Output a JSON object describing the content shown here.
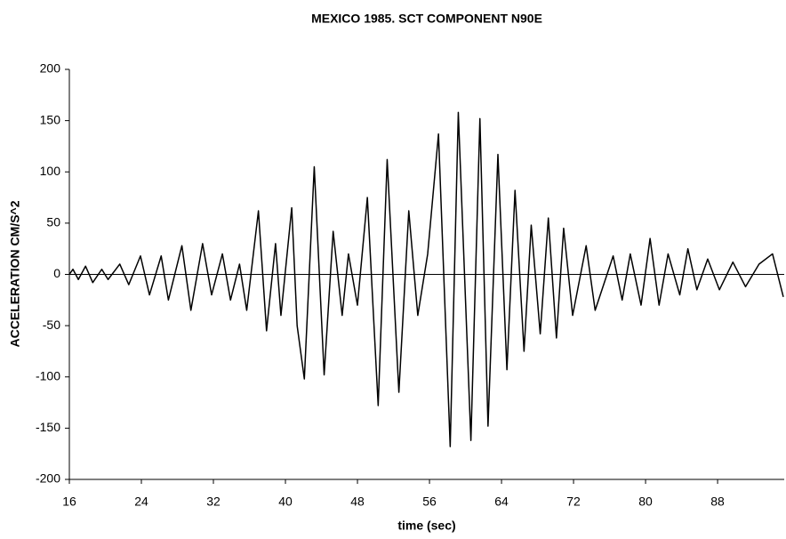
{
  "chart_data": {
    "type": "line",
    "title": "MEXICO 1985.  SCT COMPONENT N90E",
    "x_label": "time (sec)",
    "y_label": "ACCELERATION CM/S^2",
    "xlim": [
      16,
      95.4
    ],
    "xticks": [
      16,
      24,
      32,
      40,
      48,
      56,
      64,
      72,
      80,
      88
    ],
    "ylim": [
      -200,
      200
    ],
    "yticks": [
      200,
      150,
      100,
      50,
      0,
      -50,
      -100,
      -150,
      -200
    ],
    "series": [
      {
        "color": "#000000",
        "x": [
          16.0,
          16.4,
          17.0,
          17.8,
          18.6,
          19.6,
          20.3,
          21.6,
          22.6,
          23.9,
          24.9,
          26.2,
          27.0,
          28.5,
          29.5,
          30.8,
          31.8,
          33.0,
          33.9,
          34.9,
          35.7,
          37.0,
          37.9,
          38.9,
          39.5,
          40.7,
          41.3,
          42.1,
          43.2,
          44.3,
          45.3,
          46.3,
          47.0,
          48.0,
          49.1,
          50.3,
          51.3,
          52.6,
          53.7,
          54.7,
          55.8,
          57.0,
          58.3,
          59.2,
          60.6,
          61.6,
          62.5,
          63.6,
          64.6,
          65.5,
          66.5,
          67.3,
          68.3,
          69.2,
          70.1,
          70.9,
          71.9,
          73.4,
          74.4,
          76.4,
          77.4,
          78.3,
          79.5,
          80.5,
          81.5,
          82.5,
          83.8,
          84.7,
          85.7,
          86.9,
          88.2,
          89.7,
          91.1,
          92.6,
          94.1,
          95.3
        ],
        "values": [
          0,
          5,
          -5,
          8,
          -8,
          5,
          -5,
          10,
          -10,
          18,
          -20,
          18,
          -25,
          28,
          -35,
          30,
          -20,
          20,
          -25,
          10,
          -35,
          62,
          -55,
          30,
          -40,
          65,
          -50,
          -102,
          105,
          -98,
          42,
          -40,
          20,
          -30,
          75,
          -128,
          112,
          -115,
          62,
          -40,
          20,
          137,
          -168,
          158,
          -162,
          152,
          -148,
          117,
          -93,
          82,
          -75,
          48,
          -58,
          55,
          -62,
          45,
          -40,
          28,
          -35,
          18,
          -25,
          20,
          -30,
          35,
          -30,
          20,
          -20,
          25,
          -15,
          15,
          -15,
          12,
          -12,
          10,
          20,
          -22
        ]
      }
    ]
  }
}
